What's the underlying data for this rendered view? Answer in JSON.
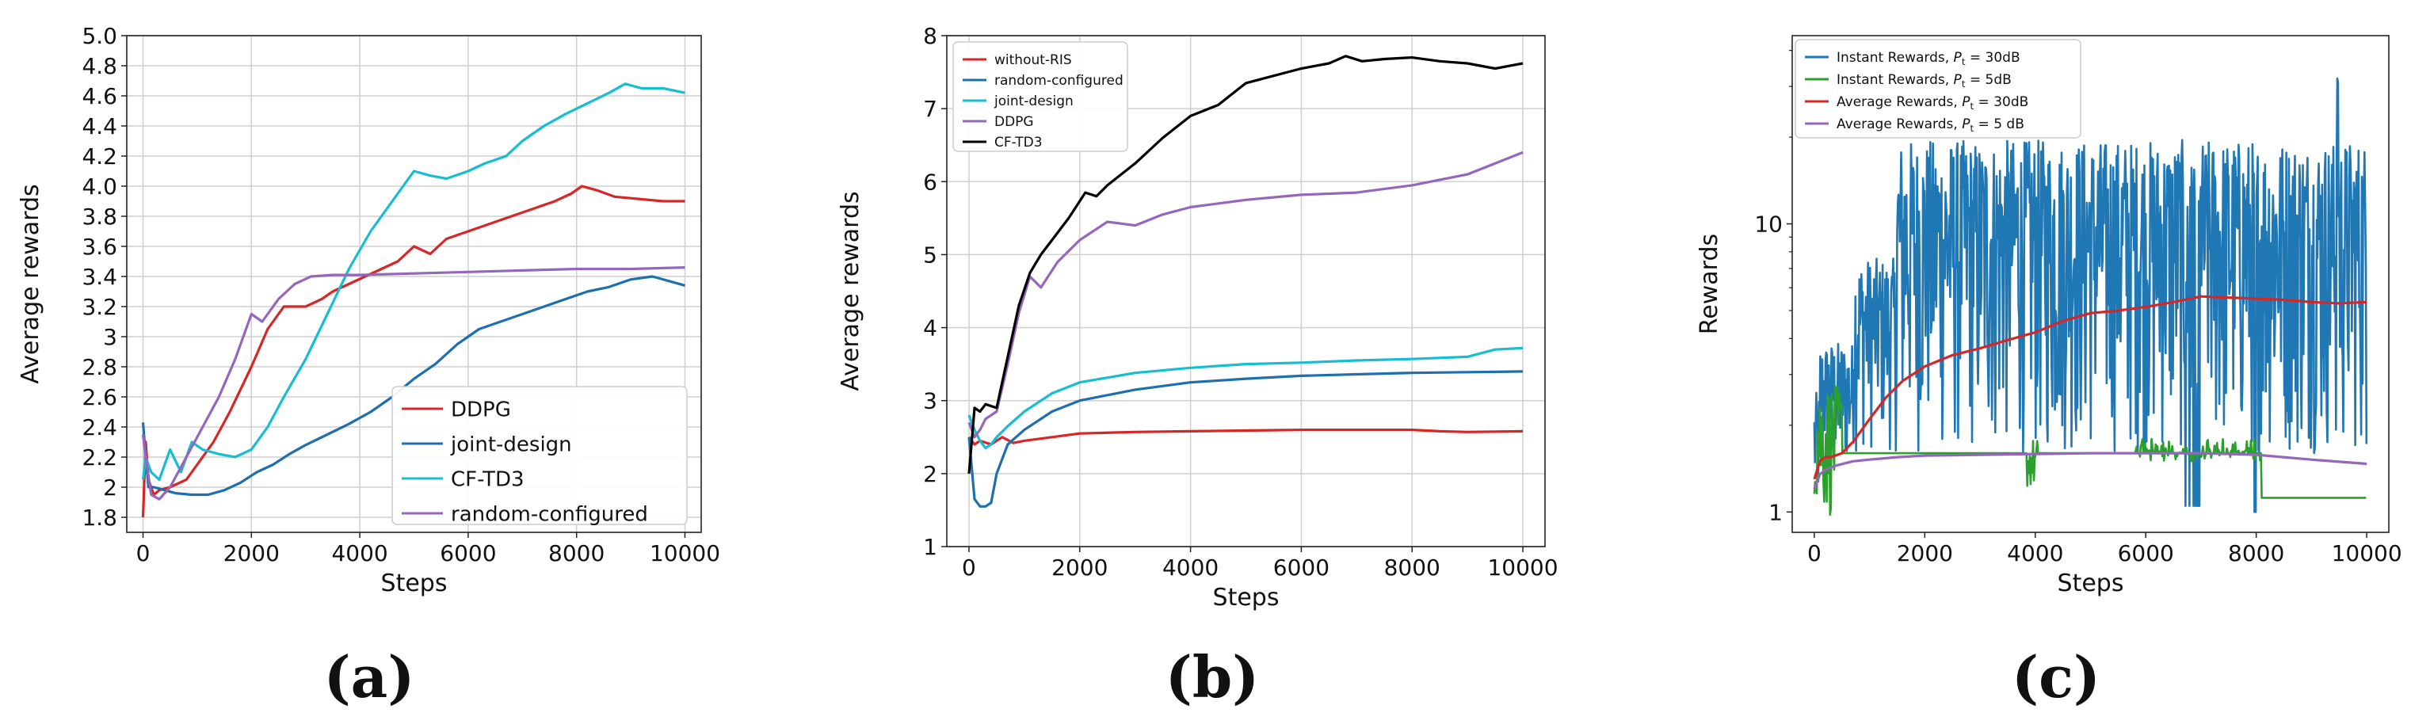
{
  "figure": {
    "captions": [
      "(a)",
      "(b)",
      "(c)"
    ]
  },
  "chart_data": [
    {
      "type": "line",
      "xlabel": "Steps",
      "ylabel": "Average rewards",
      "xlim": [
        -300,
        10300
      ],
      "ylim": [
        1.7,
        5.0
      ],
      "xticks": [
        0,
        2000,
        4000,
        6000,
        8000,
        10000
      ],
      "yticks": [
        1.8,
        2,
        2.2,
        2.4,
        2.6,
        2.8,
        3,
        3.2,
        3.4,
        3.6,
        3.8,
        4.0,
        4.2,
        4.4,
        4.6,
        4.8,
        5.0
      ],
      "ytick_labels": [
        "1.8",
        "2",
        "2.2",
        "2.4",
        "2.6",
        "2.8",
        "3",
        "3.2",
        "3.4",
        "3.6",
        "3.8",
        "4.0",
        "4.2",
        "4.4",
        "4.6",
        "4.8",
        "5.0"
      ],
      "grid": true,
      "legend": "bottom-right",
      "series": [
        {
          "name": "DDPG",
          "color": "#d62728",
          "x": [
            0,
            50,
            100,
            200,
            300,
            500,
            800,
            1000,
            1300,
            1600,
            2000,
            2300,
            2600,
            3000,
            3300,
            3500,
            3800,
            4100,
            4400,
            4700,
            5000,
            5300,
            5600,
            6000,
            6400,
            6800,
            7200,
            7600,
            7900,
            8100,
            8400,
            8700,
            9000,
            9300,
            9600,
            10000
          ],
          "y": [
            1.8,
            2.3,
            2.05,
            1.95,
            1.98,
            2.0,
            2.05,
            2.15,
            2.3,
            2.5,
            2.8,
            3.05,
            3.2,
            3.2,
            3.25,
            3.3,
            3.35,
            3.4,
            3.45,
            3.5,
            3.6,
            3.55,
            3.65,
            3.7,
            3.75,
            3.8,
            3.85,
            3.9,
            3.95,
            4.0,
            3.97,
            3.93,
            3.92,
            3.91,
            3.9,
            3.9
          ]
        },
        {
          "name": "joint-design",
          "color": "#1f6fad",
          "x": [
            0,
            50,
            100,
            200,
            400,
            600,
            900,
            1200,
            1500,
            1800,
            2100,
            2400,
            2700,
            3000,
            3400,
            3800,
            4200,
            4600,
            5000,
            5400,
            5800,
            6200,
            6600,
            7000,
            7400,
            7800,
            8200,
            8600,
            9000,
            9400,
            9700,
            10000
          ],
          "y": [
            2.43,
            2.2,
            2.0,
            2.0,
            1.98,
            1.96,
            1.95,
            1.95,
            1.98,
            2.03,
            2.1,
            2.15,
            2.22,
            2.28,
            2.35,
            2.42,
            2.5,
            2.6,
            2.72,
            2.82,
            2.95,
            3.05,
            3.1,
            3.15,
            3.2,
            3.25,
            3.3,
            3.33,
            3.38,
            3.4,
            3.37,
            3.34
          ]
        },
        {
          "name": "CF-TD3",
          "color": "#17becf",
          "x": [
            0,
            50,
            150,
            300,
            500,
            700,
            900,
            1100,
            1400,
            1700,
            2000,
            2300,
            2600,
            3000,
            3400,
            3800,
            4200,
            4600,
            5000,
            5300,
            5600,
            6000,
            6300,
            6700,
            7000,
            7400,
            7800,
            8200,
            8600,
            8900,
            9200,
            9600,
            10000
          ],
          "y": [
            2.05,
            2.2,
            2.1,
            2.05,
            2.25,
            2.1,
            2.3,
            2.25,
            2.22,
            2.2,
            2.25,
            2.4,
            2.6,
            2.85,
            3.15,
            3.45,
            3.7,
            3.9,
            4.1,
            4.07,
            4.05,
            4.1,
            4.15,
            4.2,
            4.3,
            4.4,
            4.48,
            4.55,
            4.62,
            4.68,
            4.65,
            4.65,
            4.62
          ]
        },
        {
          "name": "random-configured",
          "color": "#9467bd",
          "x": [
            0,
            50,
            150,
            300,
            500,
            800,
            1100,
            1400,
            1700,
            2000,
            2200,
            2500,
            2800,
            3100,
            3500,
            4000,
            5000,
            6000,
            7000,
            8000,
            9000,
            10000
          ],
          "y": [
            2.35,
            2.2,
            1.95,
            1.92,
            2.0,
            2.2,
            2.4,
            2.6,
            2.85,
            3.15,
            3.1,
            3.25,
            3.35,
            3.4,
            3.41,
            3.41,
            3.42,
            3.43,
            3.44,
            3.45,
            3.45,
            3.46
          ]
        }
      ]
    },
    {
      "type": "line",
      "xlabel": "Steps",
      "ylabel": "Average rewards",
      "xlim": [
        -400,
        10400
      ],
      "ylim": [
        1,
        8
      ],
      "xticks": [
        0,
        2000,
        4000,
        6000,
        8000,
        10000
      ],
      "yticks": [
        1,
        2,
        3,
        4,
        5,
        6,
        7,
        8
      ],
      "grid": true,
      "legend": "top-left",
      "series": [
        {
          "name": "without-RIS",
          "color": "#d62728",
          "x": [
            0,
            100,
            200,
            400,
            600,
            800,
            1000,
            1500,
            2000,
            3000,
            4000,
            5000,
            6000,
            7000,
            8000,
            8500,
            9000,
            10000
          ],
          "y": [
            2.5,
            2.4,
            2.45,
            2.4,
            2.5,
            2.42,
            2.45,
            2.5,
            2.55,
            2.57,
            2.58,
            2.59,
            2.6,
            2.6,
            2.6,
            2.58,
            2.57,
            2.58
          ]
        },
        {
          "name": "random-configured",
          "color": "#1f6fad",
          "x": [
            0,
            100,
            200,
            300,
            400,
            500,
            700,
            1000,
            1500,
            2000,
            3000,
            4000,
            5000,
            6000,
            7000,
            8000,
            9000,
            10000
          ],
          "y": [
            2.5,
            1.65,
            1.55,
            1.55,
            1.6,
            2.0,
            2.4,
            2.6,
            2.85,
            3.0,
            3.15,
            3.25,
            3.3,
            3.34,
            3.36,
            3.38,
            3.39,
            3.4
          ]
        },
        {
          "name": "joint-design",
          "color": "#17becf",
          "x": [
            0,
            100,
            200,
            300,
            400,
            500,
            700,
            1000,
            1500,
            2000,
            3000,
            4000,
            5000,
            6000,
            7000,
            8000,
            9000,
            9500,
            10000
          ],
          "y": [
            2.8,
            2.6,
            2.45,
            2.35,
            2.4,
            2.5,
            2.65,
            2.85,
            3.1,
            3.25,
            3.38,
            3.45,
            3.5,
            3.52,
            3.55,
            3.57,
            3.6,
            3.7,
            3.72
          ]
        },
        {
          "name": "DDPG",
          "color": "#9467bd",
          "x": [
            0,
            100,
            200,
            300,
            500,
            700,
            900,
            1100,
            1300,
            1600,
            2000,
            2500,
            3000,
            3500,
            4000,
            5000,
            6000,
            7000,
            8000,
            9000,
            10000
          ],
          "y": [
            2.7,
            2.5,
            2.6,
            2.75,
            2.85,
            3.5,
            4.2,
            4.7,
            4.55,
            4.9,
            5.2,
            5.45,
            5.4,
            5.55,
            5.65,
            5.75,
            5.82,
            5.85,
            5.95,
            6.1,
            6.4
          ]
        },
        {
          "name": "CF-TD3",
          "color": "#000000",
          "x": [
            0,
            100,
            200,
            300,
            500,
            700,
            900,
            1100,
            1300,
            1500,
            1800,
            2100,
            2300,
            2500,
            3000,
            3500,
            4000,
            4500,
            5000,
            5500,
            6000,
            6500,
            6800,
            7100,
            7500,
            8000,
            8500,
            9000,
            9500,
            10000
          ],
          "y": [
            2.0,
            2.9,
            2.85,
            2.95,
            2.9,
            3.6,
            4.3,
            4.75,
            5.0,
            5.2,
            5.5,
            5.85,
            5.8,
            5.95,
            6.25,
            6.6,
            6.9,
            7.05,
            7.35,
            7.45,
            7.55,
            7.62,
            7.72,
            7.65,
            7.68,
            7.7,
            7.65,
            7.62,
            7.55,
            7.62
          ]
        }
      ]
    },
    {
      "type": "line",
      "xlabel": "Steps",
      "ylabel": "Rewards",
      "yscale": "log",
      "xlim": [
        -400,
        10400
      ],
      "ylim": [
        0.85,
        45
      ],
      "xticks": [
        0,
        2000,
        4000,
        6000,
        8000,
        10000
      ],
      "yticks": [
        1,
        10
      ],
      "grid": false,
      "legend": "top-left",
      "series": [
        {
          "name_parts": [
            "Instant Rewards, ",
            "P",
            "t",
            " = 30dB"
          ],
          "color": "#1f77b4",
          "kind": "noisy-high"
        },
        {
          "name_parts": [
            "Instant Rewards, ",
            "P",
            "t",
            " = 5dB"
          ],
          "color": "#2ca02c",
          "kind": "noisy-low"
        },
        {
          "name_parts": [
            "Average Rewards, ",
            "P",
            "t",
            " = 30dB"
          ],
          "color": "#d62728",
          "x": [
            0,
            100,
            200,
            300,
            500,
            700,
            1000,
            1300,
            1600,
            2000,
            2500,
            3000,
            3500,
            4000,
            4500,
            5000,
            5500,
            6000,
            6500,
            7000,
            7500,
            8000,
            8500,
            9000,
            9500,
            10000
          ],
          "y": [
            1.3,
            1.5,
            1.55,
            1.55,
            1.6,
            1.75,
            2.1,
            2.5,
            2.85,
            3.2,
            3.5,
            3.7,
            3.95,
            4.2,
            4.6,
            4.9,
            5.0,
            5.15,
            5.35,
            5.6,
            5.55,
            5.5,
            5.45,
            5.35,
            5.3,
            5.35
          ]
        },
        {
          "name_parts": [
            "Average Rewards, ",
            "P",
            "t",
            " = 5 dB"
          ],
          "color": "#9467bd",
          "x": [
            0,
            100,
            200,
            400,
            700,
            1000,
            1500,
            2000,
            3000,
            4000,
            5000,
            6000,
            7000,
            8000,
            9000,
            10000
          ],
          "y": [
            1.2,
            1.35,
            1.4,
            1.45,
            1.5,
            1.52,
            1.55,
            1.57,
            1.58,
            1.59,
            1.6,
            1.6,
            1.6,
            1.58,
            1.52,
            1.47
          ]
        }
      ]
    }
  ]
}
